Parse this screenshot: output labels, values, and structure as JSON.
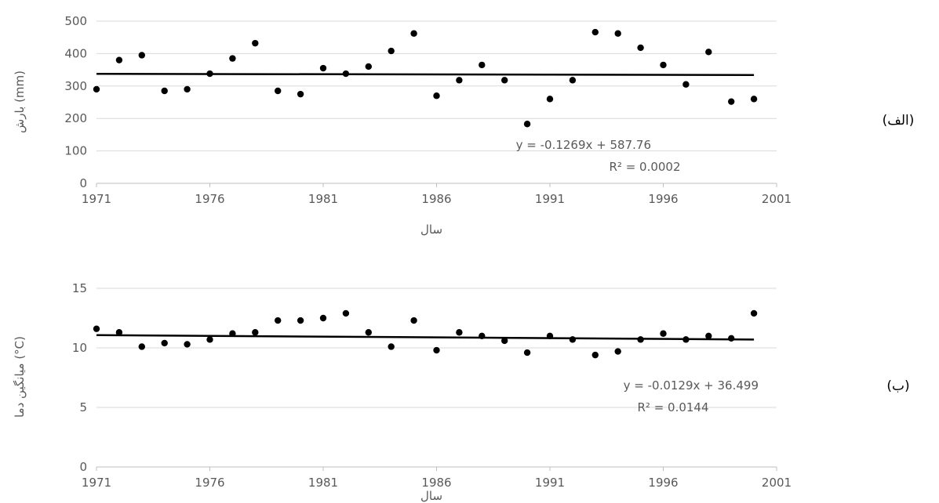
{
  "chart_data": [
    {
      "type": "scatter",
      "panel_label": "(الف)",
      "xlabel": "سال",
      "ylabel": "بارش (mm)",
      "xlim": [
        1971,
        2001
      ],
      "ylim": [
        0,
        500
      ],
      "x_ticks": [
        "1971",
        "1976",
        "1981",
        "1986",
        "1991",
        "1996",
        "2001"
      ],
      "y_ticks": [
        "0",
        "100",
        "200",
        "300",
        "400",
        "500"
      ],
      "grid": true,
      "series": [
        {
          "x": [
            1971,
            1972,
            1973,
            1974,
            1975,
            1976,
            1977,
            1978,
            1979,
            1980,
            1981,
            1982,
            1983,
            1984,
            1985,
            1986,
            1987,
            1988,
            1989,
            1990,
            1991,
            1992,
            1993,
            1994,
            1995,
            1996,
            1997,
            1998,
            1999,
            2000
          ],
          "y": [
            290,
            380,
            395,
            285,
            290,
            338,
            385,
            432,
            285,
            275,
            355,
            338,
            360,
            408,
            462,
            270,
            318,
            365,
            318,
            183,
            260,
            318,
            466,
            462,
            418,
            365,
            305,
            405,
            252,
            260
          ]
        }
      ],
      "trendline": {
        "slope": -0.1269,
        "intercept": 587.76,
        "x_range": [
          1971,
          2000
        ]
      },
      "annotations": {
        "equation": "y = -0.1269x + 587.76",
        "r2": "R² = 0.0002"
      },
      "colors": {
        "marker": "#000000",
        "trend": "#000000",
        "grid": "#d9d9d9",
        "axis_text": "#595959"
      }
    },
    {
      "type": "scatter",
      "panel_label": "(ب)",
      "xlabel": "سال",
      "ylabel": "میانگین دما (°C)",
      "xlim": [
        1971,
        2001
      ],
      "ylim": [
        0,
        15
      ],
      "x_ticks": [
        "1971",
        "1976",
        "1981",
        "1986",
        "1991",
        "1996",
        "2001"
      ],
      "y_ticks": [
        "0",
        "5",
        "10",
        "15"
      ],
      "grid": true,
      "series": [
        {
          "x": [
            1971,
            1972,
            1973,
            1974,
            1975,
            1976,
            1977,
            1978,
            1979,
            1980,
            1981,
            1982,
            1983,
            1984,
            1985,
            1986,
            1987,
            1988,
            1989,
            1990,
            1991,
            1992,
            1993,
            1994,
            1995,
            1996,
            1997,
            1998,
            1999,
            2000
          ],
          "y": [
            11.6,
            11.3,
            10.1,
            10.4,
            10.3,
            10.7,
            11.2,
            11.3,
            12.3,
            12.3,
            12.5,
            12.9,
            11.3,
            10.1,
            12.3,
            9.8,
            11.3,
            11.0,
            10.6,
            9.6,
            11.0,
            10.7,
            9.4,
            9.7,
            10.7,
            11.2,
            10.7,
            11.0,
            10.8,
            12.9
          ]
        }
      ],
      "trendline": {
        "slope": -0.0129,
        "intercept": 36.499,
        "x_range": [
          1971,
          2000
        ]
      },
      "annotations": {
        "equation": "y = -0.0129x + 36.499",
        "r2": "R² = 0.0144"
      },
      "colors": {
        "marker": "#000000",
        "trend": "#000000",
        "grid": "#d9d9d9",
        "axis_text": "#595959"
      }
    }
  ]
}
